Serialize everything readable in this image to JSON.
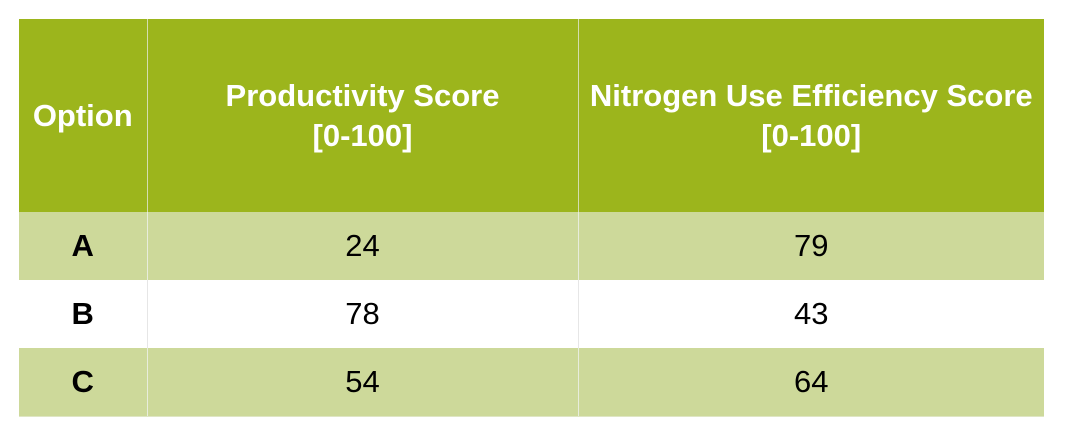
{
  "table": {
    "headers": {
      "option": "Option",
      "productivity": {
        "line1": "Productivity Score",
        "line2": "[0-100]"
      },
      "nue": {
        "line1": "Nitrogen Use Efficiency Score",
        "line2": "[0-100]"
      }
    },
    "rows": [
      {
        "option": "A",
        "productivity": "24",
        "nue": "79"
      },
      {
        "option": "B",
        "productivity": "78",
        "nue": "43"
      },
      {
        "option": "C",
        "productivity": "54",
        "nue": "64"
      }
    ],
    "colors": {
      "header_bg": "#9cb51c",
      "header_text": "#ffffff",
      "band_bg": "#cdd99a",
      "plain_bg": "#ffffff"
    }
  }
}
